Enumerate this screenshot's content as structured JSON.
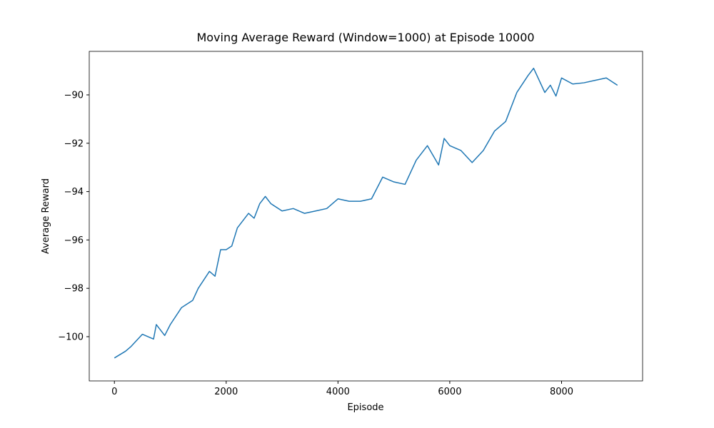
{
  "chart_data": {
    "type": "line",
    "title": "Moving Average Reward (Window=1000) at Episode 10000",
    "x_label": "Episode",
    "y_label": "Average Reward",
    "x": [
      0,
      200,
      300,
      500,
      700,
      750,
      900,
      1000,
      1200,
      1400,
      1500,
      1700,
      1800,
      1900,
      2000,
      2100,
      2200,
      2400,
      2500,
      2600,
      2700,
      2800,
      3000,
      3200,
      3400,
      3600,
      3800,
      4000,
      4200,
      4400,
      4600,
      4800,
      5000,
      5200,
      5400,
      5600,
      5800,
      5900,
      6000,
      6200,
      6400,
      6600,
      6800,
      7000,
      7200,
      7400,
      7500,
      7700,
      7800,
      7900,
      8000,
      8200,
      8400,
      8600,
      8800,
      9000
    ],
    "series": [
      {
        "name": "Average Reward",
        "color": "#1f77b4",
        "values": [
          -100.88,
          -100.6,
          -100.4,
          -99.9,
          -100.1,
          -99.5,
          -99.95,
          -99.5,
          -98.8,
          -98.5,
          -98.0,
          -97.3,
          -97.5,
          -96.4,
          -96.4,
          -96.25,
          -95.5,
          -94.9,
          -95.1,
          -94.5,
          -94.2,
          -94.5,
          -94.8,
          -94.7,
          -94.9,
          -94.8,
          -94.7,
          -94.3,
          -94.4,
          -94.4,
          -94.3,
          -93.4,
          -93.6,
          -93.7,
          -92.7,
          -92.1,
          -92.9,
          -91.8,
          -92.1,
          -92.3,
          -92.8,
          -92.3,
          -91.5,
          -91.1,
          -89.9,
          -89.2,
          -88.9,
          -89.9,
          -89.6,
          -90.05,
          -89.3,
          -89.55,
          -89.5,
          -89.4,
          -89.3,
          -89.6
        ]
      }
    ],
    "xlim": [
      -450,
      9450
    ],
    "xticks": [
      0,
      2000,
      4000,
      6000,
      8000
    ],
    "ylim": [
      -101.83,
      -88.2
    ],
    "yticks": [
      {
        "value": -100,
        "label": "−100"
      },
      {
        "value": -98,
        "label": "−98"
      },
      {
        "value": -96,
        "label": "−96"
      },
      {
        "value": -94,
        "label": "−94"
      },
      {
        "value": -92,
        "label": "−92"
      },
      {
        "value": -90,
        "label": "−90"
      }
    ],
    "grid": false
  }
}
